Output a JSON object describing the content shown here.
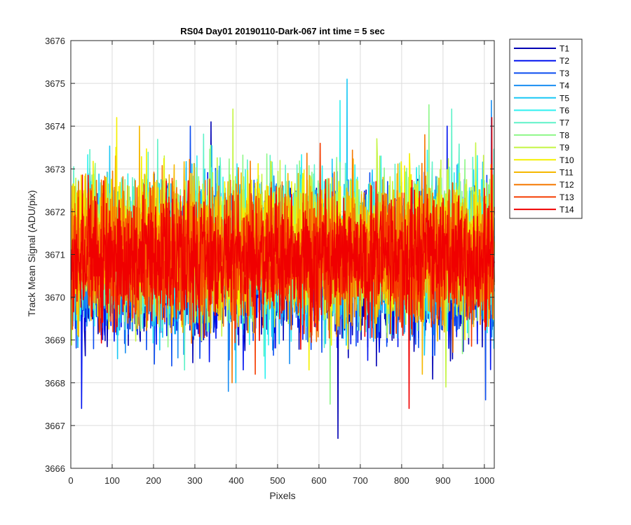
{
  "chart_data": {
    "type": "line",
    "title": "RS04 Day01 20190110-Dark-067 int time = 5 sec",
    "xlabel": "Pixels",
    "ylabel": "Track Mean Signal (ADU/pix)",
    "xlim": [
      0,
      1024
    ],
    "ylim": [
      3666,
      3676
    ],
    "xticks": [
      0,
      100,
      200,
      300,
      400,
      500,
      600,
      700,
      800,
      900,
      1000
    ],
    "yticks": [
      3666,
      3667,
      3668,
      3669,
      3670,
      3671,
      3672,
      3673,
      3674,
      3675,
      3676
    ],
    "grid": true,
    "legend_position": "outside-top-right",
    "n_points_per_series": 1024,
    "series": [
      {
        "name": "T1",
        "color": "#0000b4",
        "mean": 3670.6,
        "spread": 0.85,
        "min": 3666.7,
        "max": 3674.1
      },
      {
        "name": "T2",
        "color": "#0012f0",
        "mean": 3670.7,
        "spread": 0.85,
        "min": 3667.4,
        "max": 3674.0
      },
      {
        "name": "T3",
        "color": "#0a4cf0",
        "mean": 3670.8,
        "spread": 0.85,
        "min": 3667.6,
        "max": 3674.0
      },
      {
        "name": "T4",
        "color": "#1a8ef2",
        "mean": 3670.9,
        "spread": 0.85,
        "min": 3667.8,
        "max": 3674.6
      },
      {
        "name": "T5",
        "color": "#19c8f5",
        "mean": 3671.0,
        "spread": 0.85,
        "min": 3668.0,
        "max": 3675.1
      },
      {
        "name": "T6",
        "color": "#2ef0f0",
        "mean": 3671.1,
        "spread": 0.85,
        "min": 3668.1,
        "max": 3674.6
      },
      {
        "name": "T7",
        "color": "#5ef2c8",
        "mean": 3671.2,
        "spread": 0.85,
        "min": 3668.3,
        "max": 3674.4
      },
      {
        "name": "T8",
        "color": "#8ef788",
        "mean": 3671.2,
        "spread": 0.85,
        "min": 3667.5,
        "max": 3674.5
      },
      {
        "name": "T9",
        "color": "#c4f542",
        "mean": 3671.2,
        "spread": 0.85,
        "min": 3667.9,
        "max": 3674.4
      },
      {
        "name": "T10",
        "color": "#f5f000",
        "mean": 3671.2,
        "spread": 0.8,
        "min": 3668.3,
        "max": 3674.2
      },
      {
        "name": "T11",
        "color": "#f5b800",
        "mean": 3671.1,
        "spread": 0.8,
        "min": 3668.2,
        "max": 3674.0
      },
      {
        "name": "T12",
        "color": "#f57800",
        "mean": 3671.0,
        "spread": 0.8,
        "min": 3668.0,
        "max": 3673.8
      },
      {
        "name": "T13",
        "color": "#f53c00",
        "mean": 3670.9,
        "spread": 0.75,
        "min": 3668.2,
        "max": 3673.6
      },
      {
        "name": "T14",
        "color": "#f00000",
        "mean": 3670.9,
        "spread": 0.7,
        "min": 3667.4,
        "max": 3674.2
      }
    ]
  }
}
